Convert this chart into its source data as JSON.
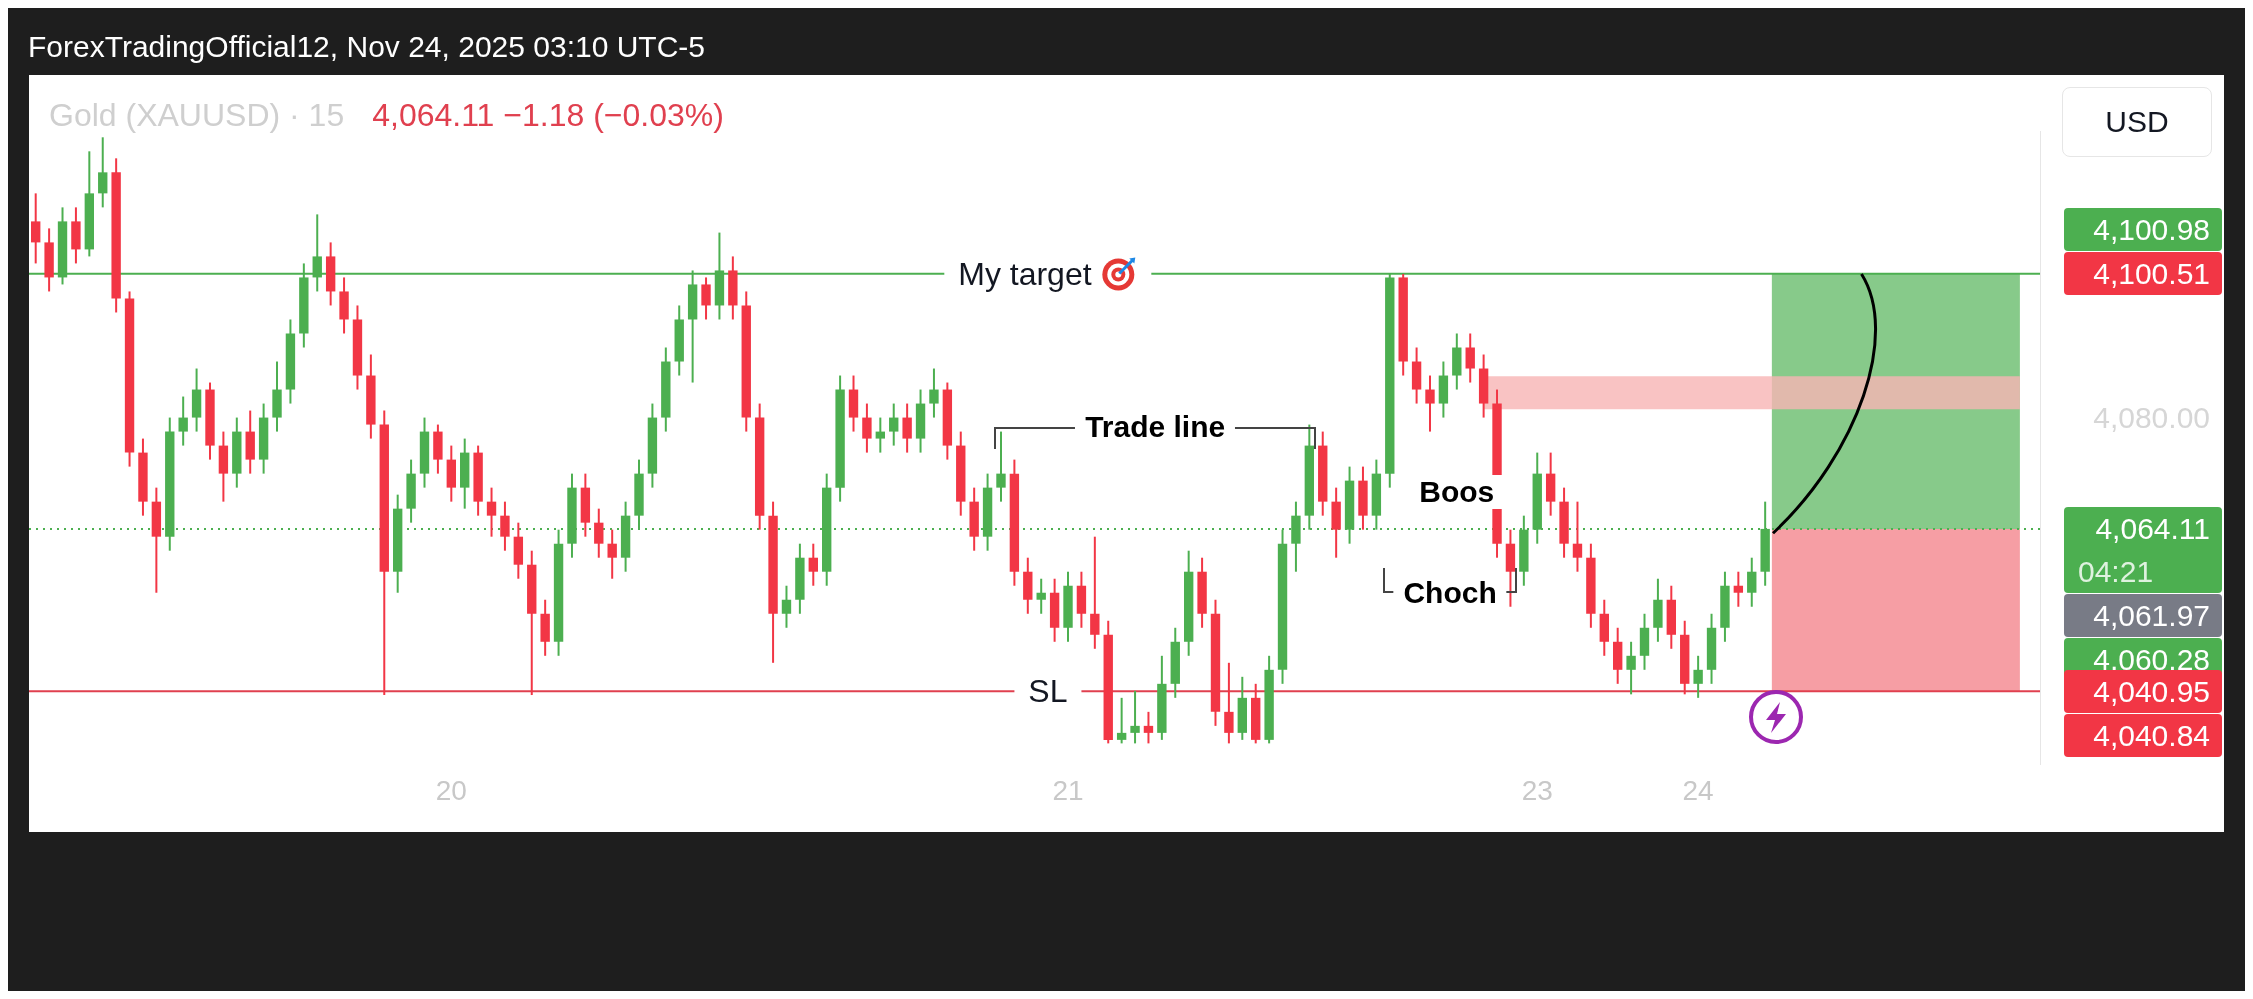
{
  "chart_data": {
    "type": "candlestick",
    "title": "Gold (XAUUSD) · 15",
    "subtitle": "4,064.11 −1.18 (−0.03%)",
    "ylabel": "USD",
    "categories": [
      null,
      null,
      null,
      null,
      null,
      null,
      null,
      null,
      null,
      null,
      null,
      null,
      null,
      null,
      null,
      null,
      null,
      null,
      null,
      null,
      null,
      null,
      null,
      null,
      null,
      null,
      null,
      null,
      null,
      null,
      null,
      "20",
      null,
      null,
      null,
      null,
      null,
      null,
      null,
      null,
      null,
      null,
      null,
      null,
      null,
      null,
      null,
      null,
      null,
      null,
      null,
      null,
      null,
      null,
      null,
      null,
      null,
      null,
      null,
      null,
      null,
      null,
      null,
      null,
      null,
      null,
      null,
      null,
      null,
      null,
      null,
      null,
      null,
      null,
      null,
      null,
      null,
      "21",
      null,
      null,
      null,
      null,
      null,
      null,
      null,
      null,
      null,
      null,
      null,
      null,
      null,
      null,
      null,
      null,
      null,
      null,
      null,
      null,
      null,
      null,
      null,
      null,
      null,
      null,
      null,
      null,
      null,
      null,
      null,
      null,
      null,
      null,
      "23",
      null,
      null,
      null,
      null,
      null,
      null,
      null,
      null,
      null,
      null,
      null,
      "24",
      null,
      null,
      null,
      null,
      null,
      null,
      null,
      null,
      null,
      null,
      null,
      null,
      null,
      null,
      null,
      null,
      null,
      null,
      null,
      null,
      null,
      null,
      null,
      null,
      null
    ],
    "ohlc": [
      [
        4108,
        4112,
        4102,
        4105
      ],
      [
        4105,
        4107,
        4098,
        4100
      ],
      [
        4100,
        4110,
        4099,
        4108
      ],
      [
        4108,
        4110,
        4102,
        4104
      ],
      [
        4104,
        4118,
        4103,
        4112
      ],
      [
        4112,
        4120,
        4110,
        4115
      ],
      [
        4115,
        4117,
        4095,
        4097
      ],
      [
        4097,
        4098,
        4073,
        4075
      ],
      [
        4075,
        4077,
        4066,
        4068
      ],
      [
        4068,
        4070,
        4055,
        4063
      ],
      [
        4063,
        4080,
        4061,
        4078
      ],
      [
        4078,
        4083,
        4076,
        4080
      ],
      [
        4080,
        4087,
        4078,
        4084
      ],
      [
        4084,
        4085,
        4074,
        4076
      ],
      [
        4076,
        4078,
        4068,
        4072
      ],
      [
        4072,
        4080,
        4070,
        4078
      ],
      [
        4078,
        4081,
        4072,
        4074
      ],
      [
        4074,
        4082,
        4072,
        4080
      ],
      [
        4080,
        4088,
        4078,
        4084
      ],
      [
        4084,
        4094,
        4082,
        4092
      ],
      [
        4092,
        4102,
        4090,
        4100
      ],
      [
        4100,
        4109,
        4098,
        4103
      ],
      [
        4103,
        4105,
        4096,
        4098
      ],
      [
        4098,
        4100,
        4092,
        4094
      ],
      [
        4094,
        4096,
        4084,
        4086
      ],
      [
        4086,
        4089,
        4077,
        4079
      ],
      [
        4079,
        4081,
        4040.4,
        4058
      ],
      [
        4058,
        4069,
        4055,
        4067
      ],
      [
        4067,
        4074,
        4065,
        4072
      ],
      [
        4072,
        4080,
        4070,
        4078
      ],
      [
        4078,
        4079,
        4072,
        4074
      ],
      [
        4074,
        4076,
        4068,
        4070
      ],
      [
        4070,
        4077,
        4067,
        4075
      ],
      [
        4075,
        4076,
        4066,
        4068
      ],
      [
        4068,
        4070,
        4063,
        4066
      ],
      [
        4066,
        4068,
        4061,
        4063
      ],
      [
        4063,
        4065,
        4057,
        4059
      ],
      [
        4059,
        4061,
        4040.4,
        4052
      ],
      [
        4052,
        4054,
        4046,
        4048
      ],
      [
        4048,
        4064,
        4046,
        4062
      ],
      [
        4062,
        4072,
        4060,
        4070
      ],
      [
        4070,
        4072,
        4063,
        4065
      ],
      [
        4065,
        4067,
        4060,
        4062
      ],
      [
        4062,
        4064,
        4057,
        4060
      ],
      [
        4060,
        4068,
        4058,
        4066
      ],
      [
        4066,
        4074,
        4064,
        4072
      ],
      [
        4072,
        4082,
        4070,
        4080
      ],
      [
        4080,
        4090,
        4078,
        4088
      ],
      [
        4088,
        4096,
        4086,
        4094
      ],
      [
        4094,
        4101,
        4085,
        4099
      ],
      [
        4099,
        4100,
        4094,
        4096
      ],
      [
        4096,
        4106.4,
        4094,
        4101
      ],
      [
        4101,
        4103,
        4094,
        4096
      ],
      [
        4096,
        4098,
        4078,
        4080
      ],
      [
        4080,
        4082,
        4064,
        4066
      ],
      [
        4066,
        4068,
        4045,
        4052
      ],
      [
        4052,
        4056,
        4050,
        4054
      ],
      [
        4054,
        4062,
        4052,
        4060
      ],
      [
        4060,
        4062,
        4056,
        4058
      ],
      [
        4058,
        4072,
        4056,
        4070
      ],
      [
        4070,
        4086,
        4068,
        4084
      ],
      [
        4084,
        4086,
        4078,
        4080
      ],
      [
        4080,
        4082,
        4075,
        4077
      ],
      [
        4077,
        4080,
        4075,
        4078
      ],
      [
        4078,
        4082,
        4076,
        4080
      ],
      [
        4080,
        4082,
        4075,
        4077
      ],
      [
        4077,
        4084,
        4075,
        4082
      ],
      [
        4082,
        4087,
        4080,
        4084
      ],
      [
        4084,
        4085,
        4074,
        4076
      ],
      [
        4076,
        4078,
        4066,
        4068
      ],
      [
        4068,
        4070,
        4061,
        4063
      ],
      [
        4063,
        4072,
        4061,
        4070
      ],
      [
        4070,
        4078,
        4068,
        4072
      ],
      [
        4072,
        4074,
        4056,
        4058
      ],
      [
        4058,
        4060,
        4052,
        4054
      ],
      [
        4054,
        4057,
        4052,
        4055
      ],
      [
        4055,
        4057,
        4048,
        4050
      ],
      [
        4050,
        4058,
        4048,
        4056
      ],
      [
        4056,
        4058,
        4050,
        4052
      ],
      [
        4052,
        4063,
        4047,
        4049
      ],
      [
        4049,
        4051,
        4033.5,
        4034
      ],
      [
        4034,
        4040,
        4033.5,
        4035
      ],
      [
        4035,
        4041,
        4033.5,
        4036
      ],
      [
        4036,
        4038,
        4033.5,
        4035
      ],
      [
        4035,
        4046,
        4034,
        4042
      ],
      [
        4042,
        4050,
        4040,
        4048
      ],
      [
        4048,
        4061,
        4046,
        4058
      ],
      [
        4058,
        4060,
        4050,
        4052
      ],
      [
        4052,
        4054,
        4036,
        4038
      ],
      [
        4038,
        4045,
        4033.5,
        4035
      ],
      [
        4035,
        4043,
        4034,
        4040
      ],
      [
        4040,
        4042,
        4033.5,
        4034
      ],
      [
        4034,
        4046,
        4033.5,
        4044
      ],
      [
        4044,
        4064,
        4042,
        4062
      ],
      [
        4062,
        4068,
        4058,
        4066
      ],
      [
        4066,
        4079,
        4064,
        4076
      ],
      [
        4076,
        4078,
        4066,
        4068
      ],
      [
        4068,
        4070,
        4060,
        4064
      ],
      [
        4064,
        4073,
        4062,
        4071
      ],
      [
        4071,
        4073,
        4064,
        4066
      ],
      [
        4066,
        4074,
        4064,
        4072
      ],
      [
        4072,
        4100.5,
        4070,
        4100
      ],
      [
        4100,
        4100.5,
        4086,
        4088
      ],
      [
        4088,
        4090,
        4082,
        4084
      ],
      [
        4084,
        4086,
        4078,
        4082
      ],
      [
        4082,
        4088,
        4080,
        4086
      ],
      [
        4086,
        4092,
        4084,
        4090
      ],
      [
        4090,
        4092,
        4085,
        4087
      ],
      [
        4087,
        4089,
        4080,
        4082
      ],
      [
        4082,
        4084,
        4060,
        4062
      ],
      [
        4062,
        4064,
        4053,
        4058
      ],
      [
        4058,
        4066,
        4056,
        4064
      ],
      [
        4064,
        4075,
        4062,
        4072
      ],
      [
        4072,
        4075,
        4066,
        4068
      ],
      [
        4068,
        4070,
        4060,
        4062
      ],
      [
        4062,
        4068,
        4058,
        4060
      ],
      [
        4060,
        4062,
        4050,
        4052
      ],
      [
        4052,
        4054,
        4046,
        4048
      ],
      [
        4048,
        4050,
        4042,
        4044
      ],
      [
        4044,
        4048,
        4040.5,
        4046
      ],
      [
        4046,
        4052,
        4044,
        4050
      ],
      [
        4050,
        4057,
        4048,
        4054
      ],
      [
        4054,
        4056,
        4047,
        4049
      ],
      [
        4049,
        4051,
        4040.5,
        4042
      ],
      [
        4042,
        4046,
        4040,
        4044
      ],
      [
        4044,
        4052,
        4042,
        4050
      ],
      [
        4050,
        4058,
        4048,
        4056
      ],
      [
        4056,
        4058,
        4053,
        4055
      ],
      [
        4055,
        4060,
        4053,
        4058
      ],
      [
        4058,
        4068,
        4056,
        4064.11
      ],
      null,
      null,
      null,
      null,
      null,
      null,
      null,
      null,
      null,
      null,
      null,
      null,
      null,
      null,
      null,
      null,
      null,
      null,
      null,
      null
    ],
    "ylim": [
      4030.5,
      4120.9
    ],
    "yticks": [
      {
        "value": 4100.51,
        "label": "4,100.51"
      },
      {
        "value": 4080,
        "label": "4,080.00"
      },
      {
        "value": 4064.11,
        "label": "4,064.11"
      },
      {
        "value": 4040.95,
        "label": "4,040.95"
      }
    ],
    "ref_lines": [
      {
        "axis": "y",
        "value": 4100.51,
        "label": "My target",
        "color": "#4caf50"
      },
      {
        "axis": "y",
        "value": 4040.95,
        "label": "SL",
        "color": "#e0404f"
      },
      {
        "axis": "y",
        "value": 4064.11,
        "color": "#4caf50",
        "line_style": "dotted"
      }
    ],
    "bands": [
      {
        "axis": "y",
        "from": 4064.11,
        "to": 4100.51,
        "color": "#81c784"
      },
      {
        "axis": "y",
        "from": 4040.95,
        "to": 4064.11,
        "color": "#f5999f"
      },
      {
        "axis": "y",
        "from": 4081.2,
        "to": 4085.9,
        "color": "#f8b4b4"
      }
    ],
    "annotations": [
      "ForexTradingOfficial12, Nov 24, 2025 03:10 UTC-5",
      "Trade line",
      "Boos",
      "Choch",
      "04:21",
      "4,100.98",
      "4,061.97",
      "4,060.28",
      "4,040.84"
    ]
  }
}
